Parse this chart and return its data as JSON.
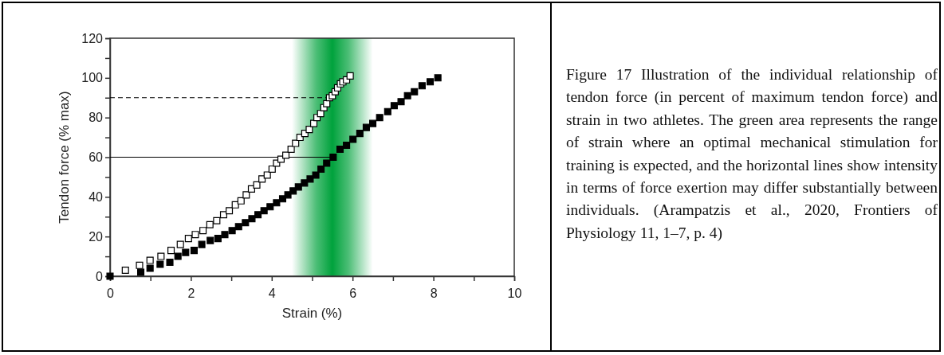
{
  "chart_data": {
    "type": "scatter",
    "xlabel": "Strain (%)",
    "ylabel": "Tendon force (% max)",
    "xlim": [
      0,
      10
    ],
    "ylim": [
      0,
      120
    ],
    "xticks": [
      0,
      {
        "value": 1,
        "label": null
      },
      2,
      {
        "value": 3,
        "label": null
      },
      4,
      {
        "value": 5,
        "label": null
      },
      6,
      {
        "value": 7,
        "label": null
      },
      8,
      {
        "value": 9,
        "label": null
      },
      10
    ],
    "yticks": [
      0,
      {
        "value": 10,
        "label": null
      },
      20,
      {
        "value": 30,
        "label": null
      },
      40,
      {
        "value": 50,
        "label": null
      },
      60,
      {
        "value": 70,
        "label": null
      },
      80,
      {
        "value": 90,
        "label": null
      },
      100,
      {
        "value": 110,
        "label": null
      },
      120
    ],
    "marker": "square",
    "grid": false,
    "bands": [
      {
        "axis": "x",
        "from": 4.5,
        "to": 6.5,
        "color": "#00a23c"
      }
    ],
    "series": [
      {
        "type": "line",
        "marker": "none",
        "line_style": "dashed",
        "color": "#000000",
        "x": [
          0,
          5.43
        ],
        "values": [
          90,
          90
        ]
      },
      {
        "type": "line",
        "marker": "none",
        "line_style": "solid",
        "color": "#000000",
        "x": [
          0,
          5.47
        ],
        "values": [
          60,
          60
        ]
      },
      {
        "color": "#ffffff",
        "x": [
          0.38,
          0.73,
          0.99,
          1.26,
          1.51,
          1.74,
          1.94,
          2.11,
          2.3,
          2.47,
          2.64,
          2.81,
          2.95,
          3.1,
          3.24,
          3.37,
          3.5,
          3.63,
          3.76,
          3.89,
          4.01,
          4.12,
          4.23,
          4.35,
          4.48,
          4.59,
          4.7,
          4.82,
          4.93,
          5.04,
          5.12,
          5.21,
          5.29,
          5.36,
          5.43,
          5.5,
          5.57,
          5.63,
          5.7,
          5.76,
          5.85,
          5.94
        ],
        "values": [
          3,
          5.5,
          8,
          10,
          13,
          16,
          19,
          21,
          23,
          26,
          28,
          31,
          33,
          36,
          38,
          41,
          44,
          46,
          49,
          51,
          54,
          57,
          59,
          61,
          64,
          67,
          70,
          72,
          74,
          77,
          80,
          82,
          85,
          87,
          90,
          91,
          93,
          95,
          97,
          98,
          99,
          101
        ]
      },
      {
        "color": "#000000",
        "x": [
          0,
          0.76,
          0.99,
          1.24,
          1.48,
          1.68,
          1.87,
          2.08,
          2.27,
          2.48,
          2.67,
          2.84,
          3.02,
          3.18,
          3.35,
          3.51,
          3.66,
          3.81,
          3.96,
          4.12,
          4.27,
          4.4,
          4.53,
          4.66,
          4.81,
          4.95,
          5.09,
          5.22,
          5.36,
          5.52,
          5.69,
          5.85,
          6.01,
          6.18,
          6.34,
          6.5,
          6.67,
          6.87,
          7.03,
          7.2,
          7.36,
          7.53,
          7.72,
          7.92,
          8.11
        ],
        "values": [
          0,
          2,
          4,
          6,
          7,
          10,
          12,
          13,
          16,
          18,
          19,
          21,
          23,
          25,
          27,
          29,
          31,
          33,
          35,
          37,
          39,
          41,
          43,
          45,
          47,
          49,
          51,
          54,
          57,
          60,
          64,
          66,
          69,
          72,
          75,
          77,
          80,
          83,
          86,
          88,
          91,
          93,
          96,
          98,
          100
        ]
      }
    ],
    "annotations": [
      "Figure 17 Illustration of the individual relationship of tendon force (in percent of maximum tendon force) and strain in two athletes. The green area represents the range of strain where an optimal mechanical stimulation for training is expected, and the horizontal lines show intensity in terms of force exertion may differ substantially between individuals. (Arampatzis et al., 2020, Frontiers of Physiology 11, 1–7, p. 4)"
    ]
  }
}
